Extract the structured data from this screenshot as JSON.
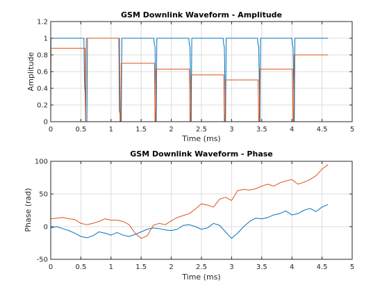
{
  "chart_data": [
    {
      "type": "line",
      "title": "GSM Downlink Waveform - Amplitude",
      "xlabel": "Time (ms)",
      "ylabel": "Amplitude",
      "xlim": [
        0,
        5
      ],
      "ylim": [
        0,
        1.2
      ],
      "xticks": [
        0,
        0.5,
        1,
        1.5,
        2,
        2.5,
        3,
        3.5,
        4,
        4.5,
        5
      ],
      "yticks": [
        0,
        0.2,
        0.4,
        0.6,
        0.8,
        1,
        1.2
      ],
      "xtick_labels": [
        "0",
        "0.5",
        "1",
        "1.5",
        "2",
        "2.5",
        "3",
        "3.5",
        "4",
        "4.5",
        "5"
      ],
      "ytick_labels": [
        "0",
        "0.2",
        "0.4",
        "0.6",
        "0.8",
        "1",
        "1.2"
      ],
      "grid": true,
      "series": [
        {
          "color": "#0072BD",
          "x": [
            0,
            0.005,
            0.01,
            0.55,
            0.56,
            0.57,
            0.58,
            0.6,
            0.61,
            0.62,
            1.13,
            1.14,
            1.15,
            1.17,
            1.18,
            1.71,
            1.72,
            1.73,
            1.75,
            1.76,
            2.29,
            2.3,
            2.31,
            2.33,
            2.34,
            2.86,
            2.87,
            2.88,
            2.9,
            2.91,
            3.43,
            3.44,
            3.45,
            3.47,
            3.48,
            4.0,
            4.01,
            4.02,
            4.04,
            4.05,
            4.6
          ],
          "y": [
            0.4,
            1.0,
            1.0,
            1.0,
            0.45,
            0.35,
            0.0,
            0.0,
            1.0,
            1.0,
            1.0,
            0.12,
            0.1,
            0.0,
            1.0,
            1.0,
            0.92,
            0.9,
            0.0,
            1.0,
            1.0,
            0.92,
            0.9,
            0.0,
            1.0,
            1.0,
            0.92,
            0.9,
            0.0,
            1.0,
            1.0,
            0.92,
            0.9,
            0.0,
            1.0,
            1.0,
            0.92,
            0.9,
            0.0,
            1.0,
            1.0
          ]
        },
        {
          "color": "#D95319",
          "x": [
            0,
            0.005,
            0.01,
            0.55,
            0.57,
            0.58,
            0.59,
            0.6,
            1.14,
            1.15,
            1.16,
            1.17,
            1.18,
            1.72,
            1.73,
            1.74,
            1.75,
            1.76,
            2.3,
            2.31,
            2.32,
            2.33,
            2.34,
            2.87,
            2.88,
            2.89,
            2.9,
            2.91,
            3.44,
            3.45,
            3.46,
            3.47,
            3.48,
            4.01,
            4.02,
            4.03,
            4.04,
            4.05,
            4.6
          ],
          "y": [
            0.0,
            0.88,
            0.88,
            0.88,
            0.88,
            0.0,
            1.0,
            1.0,
            1.0,
            0.0,
            0.0,
            0.7,
            0.7,
            0.7,
            0.0,
            0.0,
            0.63,
            0.63,
            0.63,
            0.0,
            0.0,
            0.56,
            0.56,
            0.56,
            0.0,
            0.0,
            0.5,
            0.5,
            0.5,
            0.0,
            0.0,
            0.63,
            0.63,
            0.63,
            0.0,
            0.0,
            0.8,
            0.8,
            0.8
          ]
        }
      ]
    },
    {
      "type": "line",
      "title": "GSM Downlink Waveform - Phase",
      "xlabel": "Time (ms)",
      "ylabel": "Phase (rad)",
      "xlim": [
        0,
        5
      ],
      "ylim": [
        -50,
        100
      ],
      "xticks": [
        0,
        0.5,
        1,
        1.5,
        2,
        2.5,
        3,
        3.5,
        4,
        4.5,
        5
      ],
      "yticks": [
        -50,
        0,
        50,
        100
      ],
      "xtick_labels": [
        "0",
        "0.5",
        "1",
        "1.5",
        "2",
        "2.5",
        "3",
        "3.5",
        "4",
        "4.5",
        "5"
      ],
      "ytick_labels": [
        "-50",
        "0",
        "50",
        "100"
      ],
      "grid": true,
      "series": [
        {
          "color": "#0072BD",
          "x": [
            0,
            0.1,
            0.2,
            0.3,
            0.4,
            0.5,
            0.6,
            0.7,
            0.8,
            0.9,
            1.0,
            1.1,
            1.2,
            1.3,
            1.4,
            1.5,
            1.6,
            1.7,
            1.8,
            1.9,
            2.0,
            2.1,
            2.2,
            2.3,
            2.4,
            2.5,
            2.6,
            2.7,
            2.8,
            2.9,
            3.0,
            3.1,
            3.2,
            3.3,
            3.4,
            3.5,
            3.6,
            3.7,
            3.8,
            3.9,
            4.0,
            4.1,
            4.2,
            4.3,
            4.4,
            4.5,
            4.6
          ],
          "y": [
            -2,
            0,
            -3,
            -6,
            -10,
            -15,
            -17,
            -14,
            -8,
            -10,
            -13,
            -9,
            -13,
            -15,
            -12,
            -8,
            -4,
            -2,
            -3,
            -5,
            -6,
            -4,
            2,
            3,
            0,
            -4,
            -2,
            5,
            2,
            -8,
            -18,
            -10,
            0,
            8,
            13,
            12,
            14,
            18,
            20,
            24,
            18,
            20,
            25,
            28,
            23,
            30,
            34
          ]
        },
        {
          "color": "#D95319",
          "x": [
            0,
            0.1,
            0.2,
            0.3,
            0.4,
            0.5,
            0.6,
            0.7,
            0.8,
            0.9,
            1.0,
            1.1,
            1.2,
            1.3,
            1.4,
            1.5,
            1.6,
            1.7,
            1.8,
            1.9,
            2.0,
            2.1,
            2.2,
            2.3,
            2.4,
            2.5,
            2.6,
            2.7,
            2.8,
            2.9,
            3.0,
            3.1,
            3.2,
            3.3,
            3.4,
            3.5,
            3.6,
            3.7,
            3.8,
            3.9,
            4.0,
            4.1,
            4.2,
            4.3,
            4.4,
            4.5,
            4.6
          ],
          "y": [
            12,
            13,
            14,
            12,
            11,
            5,
            3,
            5,
            8,
            12,
            10,
            10,
            8,
            3,
            -10,
            -18,
            -14,
            2,
            5,
            3,
            9,
            14,
            17,
            20,
            27,
            35,
            33,
            30,
            42,
            45,
            40,
            55,
            57,
            56,
            58,
            62,
            65,
            62,
            67,
            70,
            72,
            65,
            68,
            72,
            78,
            88,
            95
          ]
        }
      ]
    }
  ]
}
